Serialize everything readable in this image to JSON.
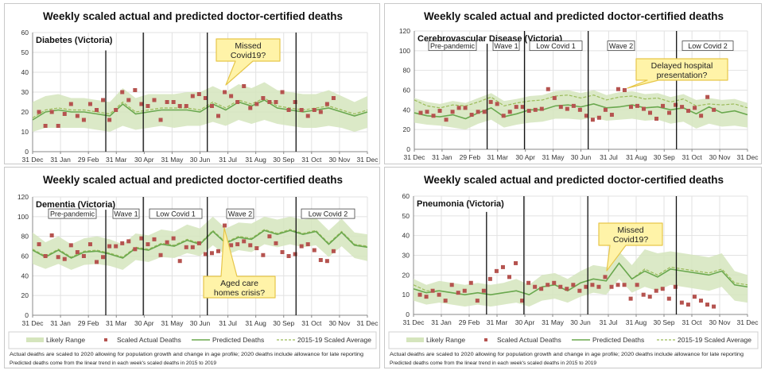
{
  "colors": {
    "band": "#d5e5bd",
    "predicted": "#6aa84f",
    "average": "#9bbb59",
    "actual": "#b5534f",
    "callout": "#fff3a8",
    "callout_border": "#e6c64a"
  },
  "notes": [
    "Actual deaths are scaled to 2020 allowing for population growth and change in age profile; 2020 deaths include allowance for late reporting",
    "Predicted deaths come from the linear trend in each week's scaled deaths in 2015 to 2019"
  ],
  "chart_data": [
    {
      "type": "line",
      "title": "Weekly scaled actual and predicted doctor-certified deaths",
      "subtitle": "Diabetes (Victoria)",
      "x_ticks": [
        "31 Dec",
        "31 Jan",
        "29 Feb",
        "31 Mar",
        "30 Apr",
        "31 May",
        "30 Jun",
        "31 Jul",
        "31 Aug",
        "30 Sep",
        "31 Oct",
        "30 Nov",
        "31 Dec"
      ],
      "ylim": [
        0,
        60
      ],
      "y_ticks": [
        0,
        10,
        20,
        30,
        40,
        50,
        60
      ],
      "grid": true,
      "phases": [],
      "callouts": [
        "Missed Covid19?"
      ],
      "actual": [
        20,
        13,
        20,
        13,
        19,
        24,
        18,
        16,
        24,
        21,
        26,
        16,
        21,
        30,
        26,
        31,
        24,
        23,
        26,
        16,
        25,
        25,
        23,
        23,
        28,
        29,
        27,
        23,
        18,
        30,
        28,
        25,
        33,
        22,
        24,
        27,
        25,
        25,
        30,
        21,
        25,
        21,
        18,
        21,
        20,
        24,
        27
      ],
      "predicted": [
        16,
        20,
        21,
        20,
        20,
        19,
        18,
        24,
        19,
        20,
        21,
        21,
        21,
        20,
        24,
        21,
        25,
        23,
        26,
        22,
        21,
        20,
        21,
        22,
        20,
        18,
        20
      ],
      "average": [
        17,
        21,
        22,
        21,
        21,
        20,
        19,
        25,
        20,
        21,
        22,
        22,
        22,
        21,
        25,
        22,
        26,
        24,
        27,
        23,
        22,
        21,
        22,
        23,
        21,
        19,
        21
      ],
      "band_lower": [
        10,
        12,
        12,
        12,
        12,
        11,
        10,
        13,
        11,
        12,
        13,
        12,
        13,
        13,
        15,
        13,
        16,
        14,
        16,
        14,
        13,
        12,
        12,
        13,
        12,
        10,
        12
      ],
      "band_upper": [
        25,
        28,
        29,
        27,
        27,
        26,
        25,
        32,
        27,
        29,
        29,
        29,
        30,
        30,
        33,
        30,
        34,
        32,
        35,
        31,
        30,
        29,
        29,
        31,
        28,
        25,
        28
      ]
    },
    {
      "type": "line",
      "title": "Weekly scaled actual and predicted doctor-certified deaths",
      "subtitle": "Cerebrovascular Disease (Victoria)",
      "x_ticks": [
        "31 Dec",
        "31 Jan",
        "29 Feb",
        "31 Mar",
        "30 Apr",
        "31 May",
        "30 Jun",
        "31 Jul",
        "31 Aug",
        "30 Sep",
        "31 Oct",
        "30 Nov",
        "31 Dec"
      ],
      "ylim": [
        0,
        120
      ],
      "y_ticks": [
        0,
        20,
        40,
        60,
        80,
        100,
        120
      ],
      "grid": true,
      "phases": [
        "Pre-pandemic",
        "Wave 1",
        "Low Covid 1",
        "Wave 2",
        "Low Covid 2"
      ],
      "callouts": [
        "Delayed hospital",
        "presentation?"
      ],
      "actual": [
        37,
        38,
        34,
        39,
        30,
        38,
        42,
        42,
        35,
        38,
        38,
        48,
        46,
        34,
        38,
        43,
        43,
        39,
        40,
        41,
        61,
        52,
        43,
        41,
        44,
        40,
        34,
        30,
        32,
        40,
        35,
        61,
        60,
        43,
        44,
        41,
        37,
        31,
        44,
        37,
        45,
        43,
        39,
        42,
        34,
        53,
        40
      ],
      "predicted": [
        37,
        34,
        33,
        35,
        31,
        37,
        42,
        33,
        36,
        40,
        40,
        44,
        45,
        43,
        46,
        42,
        43,
        45,
        42,
        43,
        40,
        42,
        36,
        43,
        37,
        39,
        35
      ],
      "average": [
        50,
        44,
        42,
        45,
        44,
        48,
        53,
        44,
        47,
        49,
        50,
        54,
        55,
        52,
        55,
        50,
        53,
        54,
        51,
        52,
        48,
        51,
        44,
        46,
        45,
        46,
        42
      ],
      "band_lower": [
        27,
        25,
        24,
        22,
        20,
        26,
        30,
        22,
        25,
        27,
        28,
        31,
        31,
        30,
        32,
        29,
        30,
        31,
        29,
        30,
        26,
        28,
        21,
        26,
        23,
        24,
        22
      ],
      "band_upper": [
        52,
        48,
        46,
        49,
        47,
        52,
        57,
        49,
        51,
        54,
        55,
        59,
        60,
        57,
        60,
        55,
        58,
        59,
        56,
        57,
        53,
        56,
        50,
        52,
        50,
        51,
        47
      ]
    },
    {
      "type": "line",
      "title": "Weekly scaled actual and predicted doctor-certified deaths",
      "subtitle": "Dementia (Victoria)",
      "x_ticks": [
        "31 Dec",
        "31 Jan",
        "29 Feb",
        "31 Mar",
        "30 Apr",
        "31 May",
        "30 Jun",
        "31 Jul",
        "31 Aug",
        "30 Sep",
        "31 Oct",
        "30 Nov",
        "31 Dec"
      ],
      "ylim": [
        0,
        120
      ],
      "y_ticks": [
        0,
        20,
        40,
        60,
        80,
        100,
        120
      ],
      "grid": true,
      "phases": [
        "Pre-pandemic",
        "Wave 1",
        "Low Covid 1",
        "Wave 2",
        "Low Covid 2"
      ],
      "callouts": [
        "Aged care",
        "homes crisis?"
      ],
      "actual": [
        72,
        60,
        81,
        59,
        57,
        71,
        64,
        60,
        72,
        54,
        59,
        70,
        70,
        73,
        75,
        67,
        78,
        72,
        77,
        61,
        74,
        78,
        55,
        69,
        69,
        73,
        62,
        63,
        65,
        91,
        71,
        72,
        75,
        71,
        68,
        61,
        80,
        73,
        64,
        60,
        62,
        70,
        72,
        66,
        56,
        55,
        65
      ],
      "predicted": [
        66,
        59,
        66,
        58,
        64,
        65,
        62,
        58,
        68,
        66,
        72,
        70,
        76,
        72,
        85,
        73,
        79,
        77,
        86,
        82,
        86,
        82,
        85,
        72,
        84,
        71,
        69
      ],
      "average": [
        67,
        60,
        67,
        59,
        65,
        66,
        63,
        59,
        69,
        67,
        73,
        71,
        77,
        73,
        86,
        74,
        80,
        78,
        87,
        83,
        87,
        83,
        86,
        73,
        85,
        72,
        70
      ],
      "band_lower": [
        52,
        47,
        52,
        46,
        51,
        52,
        50,
        46,
        56,
        54,
        59,
        58,
        63,
        60,
        71,
        61,
        66,
        64,
        72,
        69,
        72,
        69,
        71,
        59,
        70,
        58,
        55
      ],
      "band_upper": [
        84,
        74,
        80,
        72,
        78,
        80,
        77,
        72,
        83,
        81,
        87,
        85,
        92,
        88,
        100,
        88,
        94,
        93,
        100,
        97,
        100,
        97,
        99,
        86,
        98,
        84,
        82
      ]
    },
    {
      "type": "line",
      "title": "Weekly scaled actual and predicted doctor-certified deaths",
      "subtitle": "Pneumonia (Victoria)",
      "x_ticks": [
        "31 Dec",
        "31 Jan",
        "29 Feb",
        "31 Mar",
        "30 Apr",
        "31 May",
        "30 Jun",
        "31 Jul",
        "31 Aug",
        "30 Sep",
        "31 Oct",
        "30 Nov",
        "31 Dec"
      ],
      "ylim": [
        0,
        60
      ],
      "y_ticks": [
        0,
        10,
        20,
        30,
        40,
        50,
        60
      ],
      "grid": true,
      "phases": [],
      "callouts": [
        "Missed Covid19?"
      ],
      "actual": [
        10,
        9,
        12,
        10,
        7,
        15,
        11,
        12,
        16,
        7,
        12,
        18,
        22,
        24,
        19,
        26,
        7,
        16,
        14,
        13,
        15,
        16,
        14,
        13,
        15,
        12,
        14,
        15,
        14,
        19,
        14,
        15,
        15,
        8,
        15,
        10,
        9,
        12,
        13,
        8,
        14,
        6,
        5,
        9,
        7,
        5,
        4
      ],
      "predicted": [
        13,
        11,
        12,
        11,
        10,
        11,
        10,
        11,
        12,
        10,
        14,
        15,
        12,
        16,
        18,
        17,
        26,
        18,
        22,
        19,
        23,
        22,
        21,
        20,
        22,
        15,
        14
      ],
      "average": [
        15,
        12,
        12,
        11,
        10,
        11,
        10,
        11,
        12,
        10,
        14,
        15,
        12,
        16,
        18,
        17,
        26,
        18,
        23,
        20,
        24,
        23,
        22,
        21,
        23,
        16,
        15
      ],
      "band_lower": [
        7,
        5,
        6,
        5,
        4,
        5,
        4,
        5,
        6,
        4,
        7,
        8,
        6,
        9,
        11,
        10,
        18,
        11,
        14,
        12,
        15,
        14,
        13,
        12,
        14,
        7,
        6
      ],
      "band_upper": [
        18,
        15,
        17,
        16,
        15,
        16,
        15,
        16,
        18,
        15,
        20,
        21,
        18,
        22,
        25,
        24,
        32,
        25,
        33,
        31,
        32,
        31,
        30,
        29,
        31,
        22,
        20
      ]
    }
  ],
  "legend": {
    "band": "Likely Range",
    "actual": "Scaled Actual Deaths",
    "predicted": "Predicted Deaths",
    "average": "2015-19 Scaled Average"
  }
}
